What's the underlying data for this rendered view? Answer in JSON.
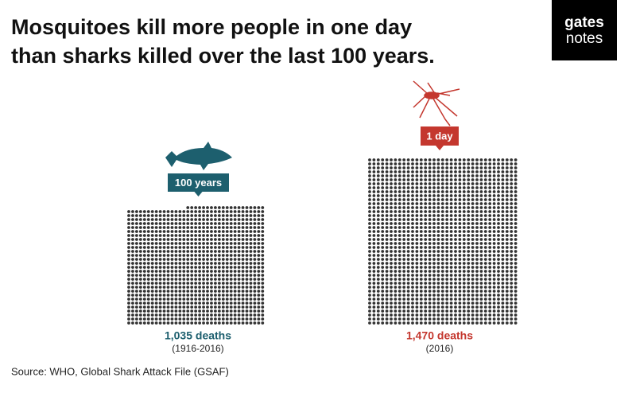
{
  "chart_data": {
    "type": "pictograph",
    "title_lines": [
      "Mosquitoes kill more people in one day",
      "than sharks killed over the last 100 years."
    ],
    "logo": [
      "gates",
      "notes"
    ],
    "groups": [
      {
        "name": "100 years",
        "value": 1035,
        "value_label": "1,035 deaths",
        "period": "(1916-2016)",
        "color": "#1d5f6e"
      },
      {
        "name": "1 day",
        "value": 1470,
        "value_label": "1,470 deaths",
        "period": "(2016)",
        "color": "#c4372e"
      }
    ],
    "source": "Source: WHO, Global Shark Attack File (GSAF)"
  }
}
